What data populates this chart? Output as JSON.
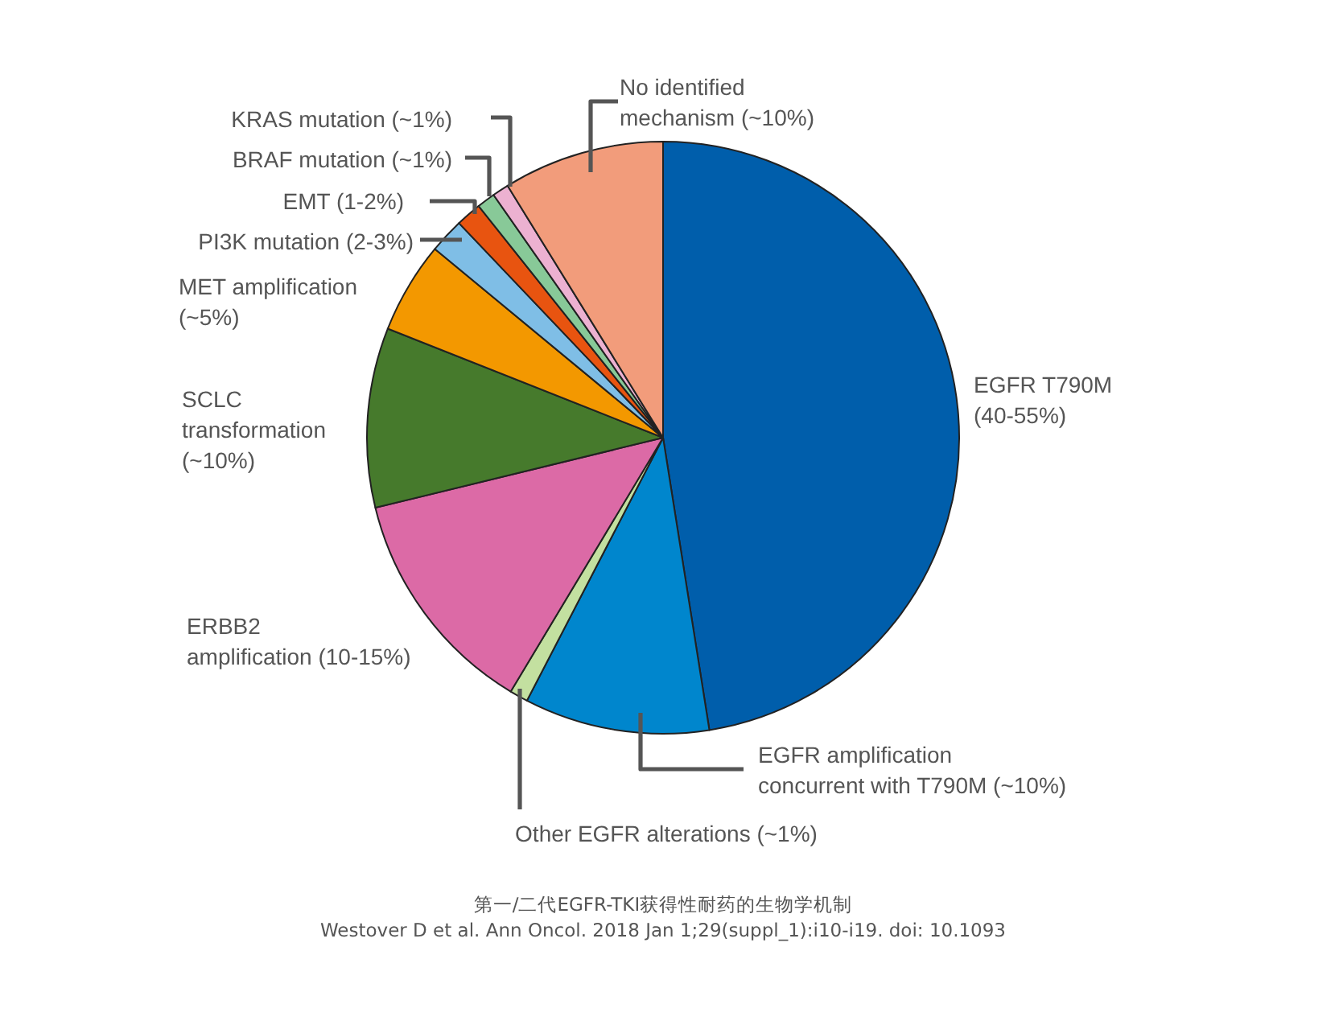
{
  "chart_data": {
    "type": "pie",
    "categories": [
      "EGFR T790M\n(40-55%)",
      "EGFR amplification\nconcurrent with T790M (~10%)",
      "Other EGFR alterations (~1%)",
      "ERBB2\namplification (10-15%)",
      "SCLC\ntransformation\n(~10%)",
      "MET amplification\n(~5%)",
      "PI3K mutation (2-3%)",
      "EMT (1-2%)",
      "BRAF mutation (~1%)",
      "KRAS mutation (~1%)",
      "No identified\nmechanism (~10%)"
    ],
    "values": [
      47.5,
      10.1,
      1.0,
      12.6,
      9.8,
      5.0,
      1.9,
      1.4,
      1.0,
      0.9,
      8.8
    ],
    "colors": [
      "#005eab",
      "#0086cd",
      "#c3e0a0",
      "#dc6aa6",
      "#467a2c",
      "#f39800",
      "#7fbee6",
      "#e85410",
      "#88c998",
      "#ecb1d1",
      "#f29c7b"
    ],
    "annotations": [
      "第一/二代EGFR-TKI获得性耐药的生物学机制",
      "Westover D et al. Ann Oncol. 2018 Jan 1;29(suppl_1):i10-i19. doi: 10.1093"
    ]
  }
}
